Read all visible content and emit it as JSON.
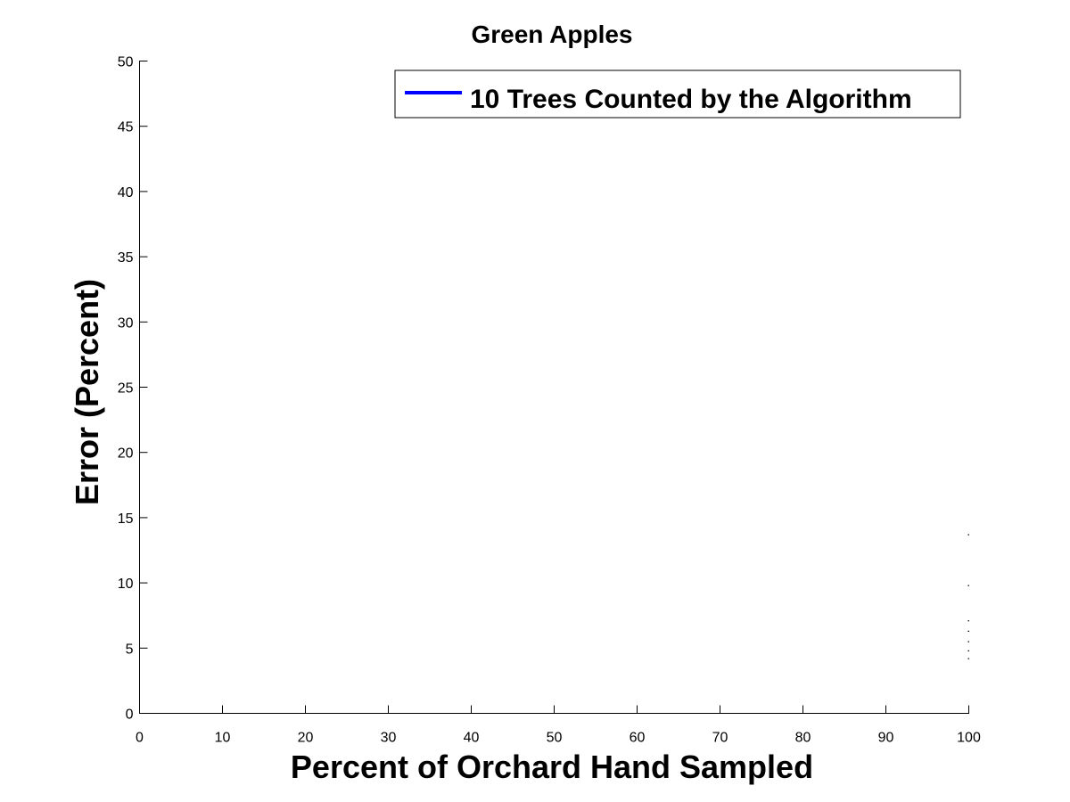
{
  "chart_data": {
    "type": "line",
    "title": "Green Apples",
    "xlabel": "Percent of Orchard Hand Sampled",
    "ylabel": "Error (Percent)",
    "xlim": [
      0,
      100
    ],
    "ylim": [
      0,
      50
    ],
    "xticks": [
      0,
      10,
      20,
      30,
      40,
      50,
      60,
      70,
      80,
      90,
      100
    ],
    "yticks": [
      0,
      5,
      10,
      15,
      20,
      25,
      30,
      35,
      40,
      45,
      50
    ],
    "grid": false,
    "legend": {
      "position": "top-right",
      "entries": [
        {
          "label": "10 Trees Counted by the Algorithm",
          "color": "#0000ff"
        }
      ]
    },
    "series": [
      {
        "name": "10 Trees Counted by the Algorithm",
        "color": "#0000ff",
        "points": [
          {
            "x": 100,
            "y": 13.7
          },
          {
            "x": 100,
            "y": 9.8
          },
          {
            "x": 100,
            "y": 7.1
          },
          {
            "x": 100,
            "y": 6.3
          },
          {
            "x": 100,
            "y": 5.5
          },
          {
            "x": 100,
            "y": 4.8
          },
          {
            "x": 100,
            "y": 4.2
          }
        ]
      }
    ]
  }
}
